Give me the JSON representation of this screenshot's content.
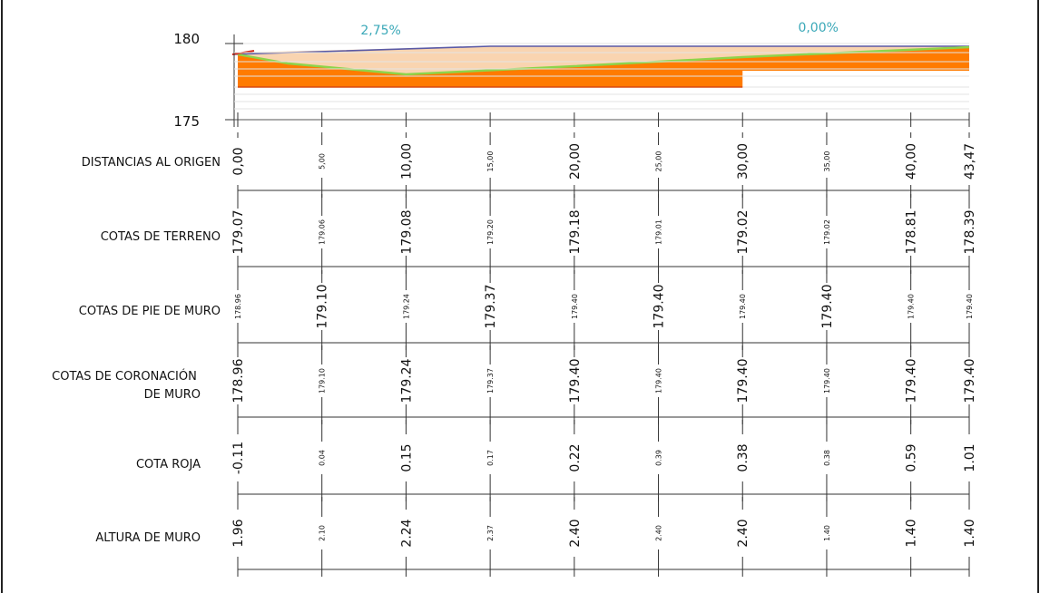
{
  "y_axis": {
    "ticks": [
      180,
      175
    ],
    "range": [
      175,
      180
    ]
  },
  "slopes": [
    {
      "text": "2,75%",
      "at": 8.5
    },
    {
      "text": "0,00%",
      "at": 34.5
    }
  ],
  "stations": [
    0,
    5,
    10,
    15,
    20,
    25,
    30,
    35,
    40,
    43.47
  ],
  "major": [
    true,
    false,
    true,
    false,
    true,
    false,
    true,
    false,
    true,
    true
  ],
  "profile": {
    "terrain": [
      179.07,
      179.06,
      179.08,
      179.2,
      179.18,
      179.01,
      179.02,
      179.02,
      178.81,
      178.39
    ],
    "wall_top": [
      178.96,
      179.1,
      179.24,
      179.37,
      179.4,
      179.4,
      179.4,
      179.4,
      179.4,
      179.4
    ],
    "foundation_level_a": 176.9,
    "foundation_level_b": 177.9,
    "foundation_step_at": 30
  },
  "rows": [
    {
      "label": "DISTANCIAS AL ORIGEN",
      "values": [
        "0,00",
        "5,00",
        "10,00",
        "15,00",
        "20,00",
        "25,00",
        "30,00",
        "35,00",
        "40,00",
        "43,47"
      ],
      "big": [
        true,
        false,
        true,
        false,
        true,
        false,
        true,
        false,
        true,
        true
      ]
    },
    {
      "label": "COTAS DE TERRENO",
      "values": [
        "179.07",
        "179.06",
        "179.08",
        "179.20",
        "179.18",
        "179.01",
        "179.02",
        "179.02",
        "178.81",
        "178.39"
      ],
      "big": [
        true,
        false,
        true,
        false,
        true,
        false,
        true,
        false,
        true,
        true
      ]
    },
    {
      "label": "COTAS DE PIE DE MURO",
      "values": [
        "178.96",
        "179.10",
        "179.24",
        "179.37",
        "179.40",
        "179.40",
        "179.40",
        "179.40",
        "179.40",
        "179.40"
      ],
      "big": [
        false,
        true,
        false,
        true,
        false,
        true,
        false,
        true,
        false,
        false
      ]
    },
    {
      "label": "COTAS DE CORONACIÓN DE MURO",
      "values": [
        "178.96",
        "179.10",
        "179.24",
        "179.37",
        "179.40",
        "179.40",
        "179.40",
        "179.40",
        "179.40",
        "179.40"
      ],
      "big": [
        true,
        false,
        true,
        false,
        true,
        false,
        true,
        false,
        true,
        true
      ]
    },
    {
      "label": "COTA ROJA",
      "values": [
        "-0.11",
        "0.04",
        "0.15",
        "0.17",
        "0.22",
        "0.39",
        "0.38",
        "0.38",
        "0.59",
        "1.01"
      ],
      "big": [
        true,
        false,
        true,
        false,
        true,
        false,
        true,
        false,
        true,
        true
      ]
    },
    {
      "label": "ALTURA DE MURO",
      "values": [
        "1.96",
        "2.10",
        "2.24",
        "2.37",
        "2.40",
        "2.40",
        "2.40",
        "1.40",
        "1.40",
        "1.40"
      ],
      "big": [
        true,
        false,
        true,
        false,
        true,
        false,
        true,
        false,
        true,
        true
      ]
    }
  ],
  "colors": {
    "fill_light": "#f9d4b0",
    "fill_orange": "#ff7b00",
    "terrain_line": "#8ed34a",
    "top_line": "#5a5aa6",
    "edge_red": "#d22a1a",
    "slope_text": "#3aa8b8"
  }
}
